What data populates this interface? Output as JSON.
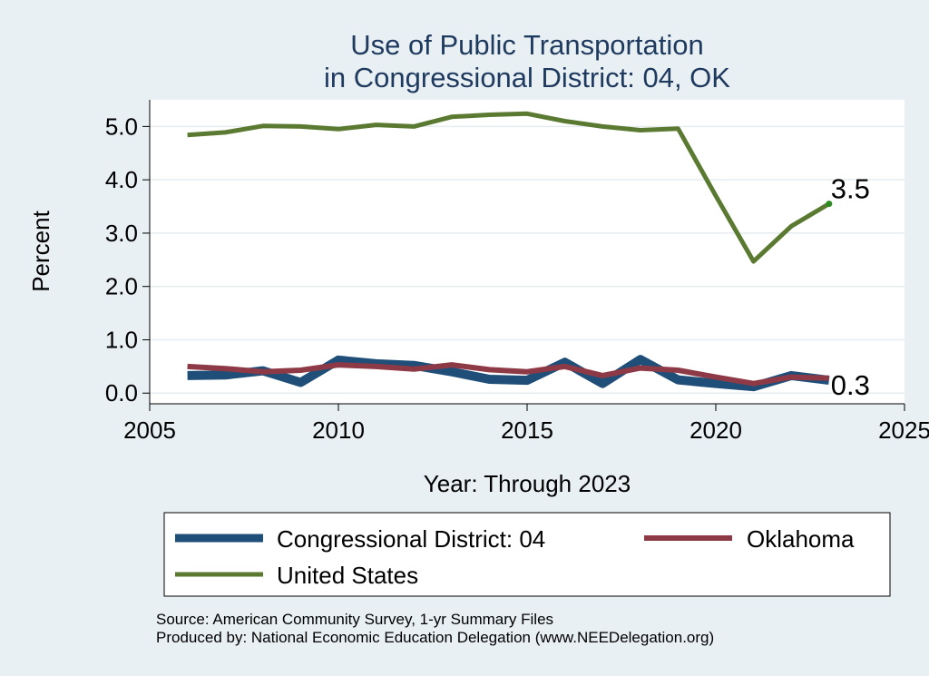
{
  "chart_data": {
    "type": "line",
    "title": [
      "Use of Public Transportation",
      "in Congressional District: 04, OK"
    ],
    "xlabel": "Year: Through 2023",
    "ylabel": "Percent",
    "xlim": [
      2005,
      2025
    ],
    "ylim": [
      -0.2,
      5.5
    ],
    "xticks": [
      2005,
      2010,
      2015,
      2020,
      2025
    ],
    "yticks": [
      0.0,
      1.0,
      2.0,
      3.0,
      4.0,
      5.0
    ],
    "ytick_labels": [
      "0.0",
      "1.0",
      "2.0",
      "3.0",
      "4.0",
      "5.0"
    ],
    "grid": true,
    "legend_position": "bottom",
    "series": [
      {
        "name": "Congressional District: 04",
        "color": "#1f4e79",
        "x": [
          2006,
          2007,
          2008,
          2009,
          2010,
          2011,
          2012,
          2013,
          2014,
          2015,
          2016,
          2017,
          2018,
          2019,
          2020,
          2021,
          2022,
          2023
        ],
        "values": [
          0.33,
          0.34,
          0.42,
          0.2,
          0.62,
          0.55,
          0.52,
          0.4,
          0.26,
          0.24,
          0.58,
          0.18,
          0.63,
          0.25,
          0.18,
          0.12,
          0.33,
          0.24
        ]
      },
      {
        "name": "Oklahoma",
        "color": "#8e3a46",
        "x": [
          2006,
          2007,
          2008,
          2009,
          2010,
          2011,
          2012,
          2013,
          2014,
          2015,
          2016,
          2017,
          2018,
          2019,
          2020,
          2021,
          2022,
          2023
        ],
        "values": [
          0.5,
          0.46,
          0.4,
          0.43,
          0.53,
          0.5,
          0.45,
          0.53,
          0.44,
          0.4,
          0.5,
          0.33,
          0.47,
          0.43,
          0.3,
          0.18,
          0.3,
          0.28
        ]
      },
      {
        "name": "United States",
        "color": "#5b7a31",
        "x": [
          2006,
          2007,
          2008,
          2009,
          2010,
          2011,
          2012,
          2013,
          2014,
          2015,
          2016,
          2017,
          2018,
          2019,
          2020,
          2021,
          2022,
          2023
        ],
        "values": [
          4.84,
          4.89,
          5.01,
          5.0,
          4.95,
          5.03,
          5.0,
          5.18,
          5.22,
          5.24,
          5.1,
          5.0,
          4.93,
          4.96,
          3.7,
          2.47,
          3.13,
          3.55
        ]
      }
    ],
    "annotations": [
      {
        "text": "3.5",
        "x": 2023,
        "y": 3.55
      },
      {
        "text": "0.3",
        "x": 2023,
        "y": 0.28
      }
    ],
    "source": "Source: American Community Survey, 1-yr Summary Files",
    "producer": "Produced by: National Economic Education Delegation (www.NEEDelegation.org)"
  }
}
